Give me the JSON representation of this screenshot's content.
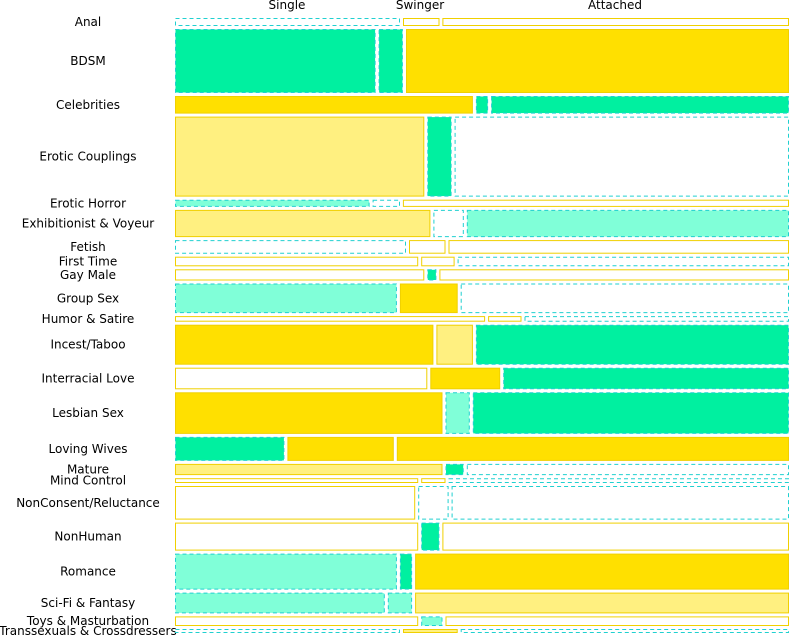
{
  "chart_data": {
    "type": "mosaic",
    "columns": [
      "Single",
      "Swinger",
      "Attached"
    ],
    "palette": {
      "strong-pos": "#00f0a0",
      "weak-pos": "#80ffd8",
      "strong-neg": "#ffe000",
      "weak-neg": "#fff080",
      "neutral": "#ffffff",
      "pos-border": "#20d0d0",
      "neg-border": "#f0d000"
    },
    "rows": [
      {
        "label": "Anal",
        "weight": 1,
        "cells": [
          {
            "share": 0.37,
            "shade": "neutral",
            "sign": "pos"
          },
          {
            "share": 0.06,
            "shade": "neutral",
            "sign": "neg"
          },
          {
            "share": 0.57,
            "shade": "neutral",
            "sign": "neg"
          }
        ]
      },
      {
        "label": "BDSM",
        "weight": 8,
        "cells": [
          {
            "share": 0.33,
            "shade": "strong-pos",
            "sign": "pos"
          },
          {
            "share": 0.04,
            "shade": "strong-pos",
            "sign": "pos"
          },
          {
            "share": 0.63,
            "shade": "strong-neg",
            "sign": "neg"
          }
        ]
      },
      {
        "label": "Celebrities",
        "weight": 2.2,
        "cells": [
          {
            "share": 0.49,
            "shade": "strong-neg",
            "sign": "neg"
          },
          {
            "share": 0.02,
            "shade": "strong-pos",
            "sign": "pos"
          },
          {
            "share": 0.49,
            "shade": "strong-pos",
            "sign": "pos"
          }
        ]
      },
      {
        "label": "Erotic Couplings",
        "weight": 10,
        "cells": [
          {
            "share": 0.41,
            "shade": "weak-neg",
            "sign": "neg"
          },
          {
            "share": 0.04,
            "shade": "strong-pos",
            "sign": "pos"
          },
          {
            "share": 0.55,
            "shade": "neutral",
            "sign": "pos"
          }
        ]
      },
      {
        "label": "Erotic Horror",
        "weight": 0.9,
        "cells": [
          {
            "share": 0.32,
            "shade": "weak-pos",
            "sign": "pos"
          },
          {
            "share": 0.045,
            "shade": "neutral",
            "sign": "pos"
          },
          {
            "share": 0.635,
            "shade": "neutral",
            "sign": "neg"
          }
        ]
      },
      {
        "label": "Exhibitionist & Voyeur",
        "weight": 3.4,
        "cells": [
          {
            "share": 0.42,
            "shade": "weak-neg",
            "sign": "neg"
          },
          {
            "share": 0.05,
            "shade": "neutral",
            "sign": "pos"
          },
          {
            "share": 0.53,
            "shade": "weak-pos",
            "sign": "pos"
          }
        ]
      },
      {
        "label": "Fetish",
        "weight": 1.7,
        "cells": [
          {
            "share": 0.38,
            "shade": "neutral",
            "sign": "pos"
          },
          {
            "share": 0.06,
            "shade": "neutral",
            "sign": "neg"
          },
          {
            "share": 0.56,
            "shade": "neutral",
            "sign": "neg"
          }
        ]
      },
      {
        "label": "First Time",
        "weight": 1.2,
        "cells": [
          {
            "share": 0.4,
            "shade": "neutral",
            "sign": "neg"
          },
          {
            "share": 0.055,
            "shade": "neutral",
            "sign": "neg"
          },
          {
            "share": 0.545,
            "shade": "neutral",
            "sign": "pos"
          }
        ]
      },
      {
        "label": "Gay Male",
        "weight": 1.4,
        "cells": [
          {
            "share": 0.41,
            "shade": "neutral",
            "sign": "neg"
          },
          {
            "share": 0.015,
            "shade": "strong-pos",
            "sign": "pos"
          },
          {
            "share": 0.575,
            "shade": "neutral",
            "sign": "neg"
          }
        ]
      },
      {
        "label": "Group Sex",
        "weight": 3.7,
        "cells": [
          {
            "share": 0.365,
            "shade": "weak-pos",
            "sign": "pos"
          },
          {
            "share": 0.095,
            "shade": "strong-neg",
            "sign": "neg"
          },
          {
            "share": 0.54,
            "shade": "neutral",
            "sign": "pos"
          }
        ]
      },
      {
        "label": "Humor & Satire",
        "weight": 0.7,
        "cells": [
          {
            "share": 0.51,
            "shade": "neutral",
            "sign": "neg"
          },
          {
            "share": 0.055,
            "shade": "neutral",
            "sign": "neg"
          },
          {
            "share": 0.435,
            "shade": "neutral",
            "sign": "pos"
          }
        ]
      },
      {
        "label": "Incest/Taboo",
        "weight": 5,
        "cells": [
          {
            "share": 0.425,
            "shade": "strong-neg",
            "sign": "neg"
          },
          {
            "share": 0.06,
            "shade": "weak-neg",
            "sign": "neg"
          },
          {
            "share": 0.515,
            "shade": "strong-pos",
            "sign": "pos"
          }
        ]
      },
      {
        "label": "Interracial Love",
        "weight": 2.7,
        "cells": [
          {
            "share": 0.415,
            "shade": "neutral",
            "sign": "neg"
          },
          {
            "share": 0.115,
            "shade": "strong-neg",
            "sign": "neg"
          },
          {
            "share": 0.47,
            "shade": "strong-pos",
            "sign": "pos"
          }
        ]
      },
      {
        "label": "Lesbian Sex",
        "weight": 5.2,
        "cells": [
          {
            "share": 0.44,
            "shade": "strong-neg",
            "sign": "neg"
          },
          {
            "share": 0.04,
            "shade": "weak-pos",
            "sign": "pos"
          },
          {
            "share": 0.52,
            "shade": "strong-pos",
            "sign": "pos"
          }
        ]
      },
      {
        "label": "Loving Wives",
        "weight": 3,
        "cells": [
          {
            "share": 0.18,
            "shade": "strong-pos",
            "sign": "pos"
          },
          {
            "share": 0.175,
            "shade": "strong-neg",
            "sign": "neg"
          },
          {
            "share": 0.645,
            "shade": "strong-neg",
            "sign": "neg"
          }
        ]
      },
      {
        "label": "Mature",
        "weight": 1.4,
        "cells": [
          {
            "share": 0.44,
            "shade": "weak-neg",
            "sign": "neg"
          },
          {
            "share": 0.03,
            "shade": "strong-pos",
            "sign": "pos"
          },
          {
            "share": 0.53,
            "shade": "neutral",
            "sign": "pos"
          }
        ]
      },
      {
        "label": "Mind Control",
        "weight": 0.6,
        "cells": [
          {
            "share": 0.4,
            "shade": "neutral",
            "sign": "neg"
          },
          {
            "share": 0.04,
            "shade": "neutral",
            "sign": "neg"
          },
          {
            "share": 0.56,
            "shade": "neutral",
            "sign": "pos"
          }
        ]
      },
      {
        "label": "NonConsent/Reluctance",
        "weight": 4.2,
        "cells": [
          {
            "share": 0.395,
            "shade": "neutral",
            "sign": "neg"
          },
          {
            "share": 0.05,
            "shade": "neutral",
            "sign": "pos"
          },
          {
            "share": 0.555,
            "shade": "neutral",
            "sign": "pos"
          }
        ]
      },
      {
        "label": "NonHuman",
        "weight": 3.5,
        "cells": [
          {
            "share": 0.4,
            "shade": "neutral",
            "sign": "neg"
          },
          {
            "share": 0.03,
            "shade": "strong-pos",
            "sign": "pos"
          },
          {
            "share": 0.57,
            "shade": "neutral",
            "sign": "neg"
          }
        ]
      },
      {
        "label": "Romance",
        "weight": 4.5,
        "cells": [
          {
            "share": 0.365,
            "shade": "weak-pos",
            "sign": "pos"
          },
          {
            "share": 0.02,
            "shade": "strong-pos",
            "sign": "pos"
          },
          {
            "share": 0.615,
            "shade": "strong-neg",
            "sign": "neg"
          }
        ]
      },
      {
        "label": "Sci-Fi & Fantasy",
        "weight": 2.6,
        "cells": [
          {
            "share": 0.345,
            "shade": "weak-pos",
            "sign": "pos"
          },
          {
            "share": 0.04,
            "shade": "weak-pos",
            "sign": "pos"
          },
          {
            "share": 0.615,
            "shade": "weak-neg",
            "sign": "neg"
          }
        ]
      },
      {
        "label": "Toys & Masturbation",
        "weight": 1.2,
        "cells": [
          {
            "share": 0.4,
            "shade": "neutral",
            "sign": "neg"
          },
          {
            "share": 0.035,
            "shade": "weak-pos",
            "sign": "pos"
          },
          {
            "share": 0.565,
            "shade": "neutral",
            "sign": "neg"
          }
        ]
      },
      {
        "label": "Transsexuals & Crossdressers",
        "weight": 0.5,
        "cells": [
          {
            "share": 0.37,
            "shade": "neutral",
            "sign": "pos"
          },
          {
            "share": 0.09,
            "shade": "weak-neg",
            "sign": "neg"
          },
          {
            "share": 0.54,
            "shade": "neutral",
            "sign": "pos"
          }
        ]
      }
    ]
  }
}
